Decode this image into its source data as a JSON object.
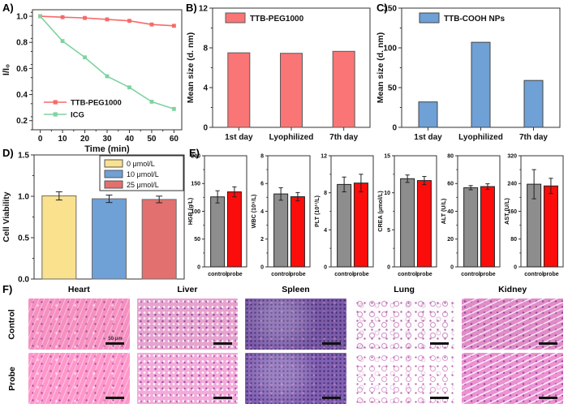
{
  "panel_labels": {
    "a": "A)",
    "b": "B)",
    "c": "C)",
    "d": "D)",
    "e": "E)",
    "f": "F)"
  },
  "chart_data": [
    {
      "id": "A",
      "type": "line",
      "xlabel": "Time (min)",
      "ylabel": "I/I₀",
      "x": [
        0,
        10,
        20,
        30,
        40,
        50,
        60
      ],
      "xticks": [
        "0",
        "10",
        "20",
        "30",
        "40",
        "50",
        "60"
      ],
      "yticks": [
        {
          "v": 0.2,
          "label": "0.2"
        },
        {
          "v": 0.4,
          "label": "0.4"
        },
        {
          "v": 0.6,
          "label": "0.6"
        },
        {
          "v": 0.8,
          "label": "0.8"
        },
        {
          "v": 1.0,
          "label": "1.0"
        }
      ],
      "ylim": [
        0.13,
        1.05
      ],
      "xlim": [
        -3.5,
        63.5
      ],
      "series": [
        {
          "name": "TTB-PEG1000",
          "color": "#f56a6a",
          "values": [
            1.0,
            0.993,
            0.987,
            0.976,
            0.965,
            0.937,
            0.927
          ]
        },
        {
          "name": "ICG",
          "color": "#7ed3a0",
          "values": [
            1.0,
            0.81,
            0.685,
            0.54,
            0.455,
            0.345,
            0.29
          ]
        }
      ],
      "legend_position": "bottom-left",
      "grid": false
    },
    {
      "id": "B",
      "type": "bar",
      "legend": "TTB-PEG1000",
      "ylabel": "Mean size (d. nm)",
      "categories": [
        "1st day",
        "Lyophilized",
        "7th day"
      ],
      "values": [
        7.5,
        7.45,
        7.65
      ],
      "bar_color": "#fa7575",
      "bar_border": "#5a5a5a",
      "ylim": [
        0,
        12
      ],
      "minor": 2,
      "yticks": [
        {
          "v": 0,
          "label": "0"
        },
        {
          "v": 4,
          "label": "4"
        },
        {
          "v": 8,
          "label": "8"
        },
        {
          "v": 12,
          "label": "12"
        }
      ]
    },
    {
      "id": "C",
      "type": "bar",
      "legend": "TTB-COOH NPs",
      "ylabel": "Mean size (d. nm)",
      "categories": [
        "1st day",
        "Lyophilized",
        "7th day"
      ],
      "values": [
        32,
        107,
        59
      ],
      "bar_color": "#6fa0d6",
      "bar_border": "#444444",
      "ylim": [
        0,
        150
      ],
      "minor": 25,
      "yticks": [
        {
          "v": 0,
          "label": "0"
        },
        {
          "v": 50,
          "label": "50"
        },
        {
          "v": 100,
          "label": "100"
        },
        {
          "v": 150,
          "label": "150"
        }
      ]
    },
    {
      "id": "D",
      "type": "bar-multi",
      "ylabel": "Cell Viability",
      "bars": [
        {
          "label": "0 μmol/L",
          "value": 1.005,
          "err": 0.05,
          "color": "#f9e18d",
          "border": "#6b6b6b"
        },
        {
          "label": "10 μmol/L",
          "value": 0.97,
          "err": 0.045,
          "color": "#6fa0d6",
          "border": "#6b6b6b"
        },
        {
          "label": "25 μmol/L",
          "value": 0.962,
          "err": 0.04,
          "color": "#e2706f",
          "border": "#6b6b6b"
        }
      ],
      "ylim": [
        0,
        1.5
      ],
      "minor": 0.25,
      "yticks": [
        {
          "v": 0,
          "label": "0.0"
        },
        {
          "v": 0.5,
          "label": "0.5"
        },
        {
          "v": 1.0,
          "label": "1.0"
        },
        {
          "v": 1.5,
          "label": "1.5"
        }
      ]
    },
    {
      "id": "E",
      "type": "bar-group",
      "categories": [
        "control",
        "probe"
      ],
      "colors": {
        "control": "#8d8d8d",
        "probe": "#fb0d0c"
      },
      "bar_border": "#222222",
      "charts": [
        {
          "ylabel": "HGB (g/L)",
          "ylim": [
            0,
            200
          ],
          "minor": 25,
          "yticks": [
            0,
            50,
            100,
            150,
            200
          ],
          "values": [
            126,
            135
          ],
          "errors": [
            11,
            9
          ]
        },
        {
          "ylabel": "WBC (10⁹/L)",
          "ylim": [
            0,
            8
          ],
          "minor": 1,
          "yticks": [
            0,
            2,
            4,
            6,
            8
          ],
          "values": [
            5.25,
            5.05
          ],
          "errors": [
            0.45,
            0.3
          ]
        },
        {
          "ylabel": "PLT (10¹¹/L)",
          "ylim": [
            0,
            12
          ],
          "minor": 2,
          "yticks": [
            0,
            4,
            8,
            12
          ],
          "values": [
            8.9,
            9.05
          ],
          "errors": [
            0.8,
            0.95
          ]
        },
        {
          "ylabel": "CREA (μmol/L)",
          "ylim": [
            0,
            15
          ],
          "minor": 2.5,
          "yticks": [
            0,
            5,
            10,
            15
          ],
          "values": [
            11.9,
            11.65
          ],
          "errors": [
            0.5,
            0.55
          ]
        },
        {
          "ylabel": "ALT (U/L)",
          "ylim": [
            0,
            80
          ],
          "minor": 10,
          "yticks": [
            0,
            20,
            40,
            60,
            80
          ],
          "values": [
            57,
            57.8
          ],
          "errors": [
            1.5,
            2
          ]
        },
        {
          "ylabel": "AST (U/L)",
          "ylim": [
            0,
            320
          ],
          "minor": 40,
          "yticks": [
            0,
            80,
            160,
            240,
            320
          ],
          "values": [
            238,
            233
          ],
          "errors": [
            42,
            22
          ]
        }
      ]
    }
  ],
  "histology": {
    "columns": [
      "Heart",
      "Liver",
      "Spleen",
      "Lung",
      "Kidney"
    ],
    "rows": [
      "Control",
      "Probe"
    ],
    "scale_bar_label": "50 μm",
    "tissue_colors": {
      "Heart": {
        "base": "#f690c0",
        "accent": "#a8519c"
      },
      "Liver": {
        "base": "#e7a3cf",
        "accent": "#8d4a9e"
      },
      "Spleen": {
        "base": "#7b5cab",
        "accent": "#4a3580"
      },
      "Lung": {
        "base": "#fdfbfd",
        "accent": "#c47ab6"
      },
      "Kidney": {
        "base": "#e18bc7",
        "accent": "#90499c"
      }
    }
  }
}
